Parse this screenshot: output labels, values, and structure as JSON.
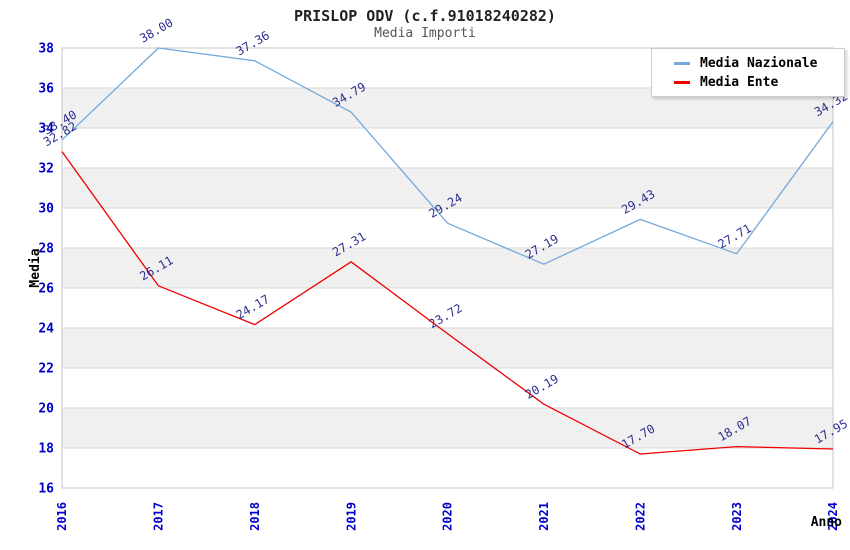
{
  "title": "PRISLOP ODV (c.f.91018240282)",
  "subtitle": "Media Importi",
  "chart_data": {
    "type": "line",
    "x": [
      2016,
      2017,
      2018,
      2019,
      2020,
      2021,
      2022,
      2023,
      2024
    ],
    "xlabel": "Anno",
    "ylabel": "Media",
    "ylim": [
      16,
      38
    ],
    "yticks": [
      16,
      18,
      20,
      22,
      24,
      26,
      28,
      30,
      32,
      34,
      36,
      38
    ],
    "grid": "horizontal gridlines with alternating gray/white bands every 2 units",
    "legend_position": "top-right",
    "point_markers": false,
    "point_labels_rotation_deg": -30,
    "series": [
      {
        "name": "Media Nazionale",
        "color": "#74A9DC",
        "values": [
          33.4,
          38.0,
          37.36,
          34.79,
          29.24,
          27.19,
          29.43,
          27.71,
          34.32
        ],
        "labels": [
          "33.40",
          "38.00",
          "37.36",
          "34.79",
          "29.24",
          "27.19",
          "29.43",
          "27.71",
          "34.32"
        ]
      },
      {
        "name": "Media Ente",
        "color": "#EE0000",
        "values": [
          32.82,
          26.11,
          24.17,
          27.31,
          23.72,
          20.19,
          17.7,
          18.07,
          17.95
        ],
        "labels": [
          "32.82",
          "26.11",
          "24.17",
          "27.31",
          "23.72",
          "20.19",
          "17.70",
          "18.07",
          "17.95"
        ]
      }
    ]
  },
  "colors": {
    "tick_label": "#0000CC",
    "point_label": "#2E2E8F",
    "band_gray": "#F0F0F0",
    "band_white": "#FFFFFF",
    "gridline": "#D8D8D8",
    "axis_border": "#C4C4C4",
    "title_text": "#222222",
    "subtitle_text": "#555555"
  }
}
